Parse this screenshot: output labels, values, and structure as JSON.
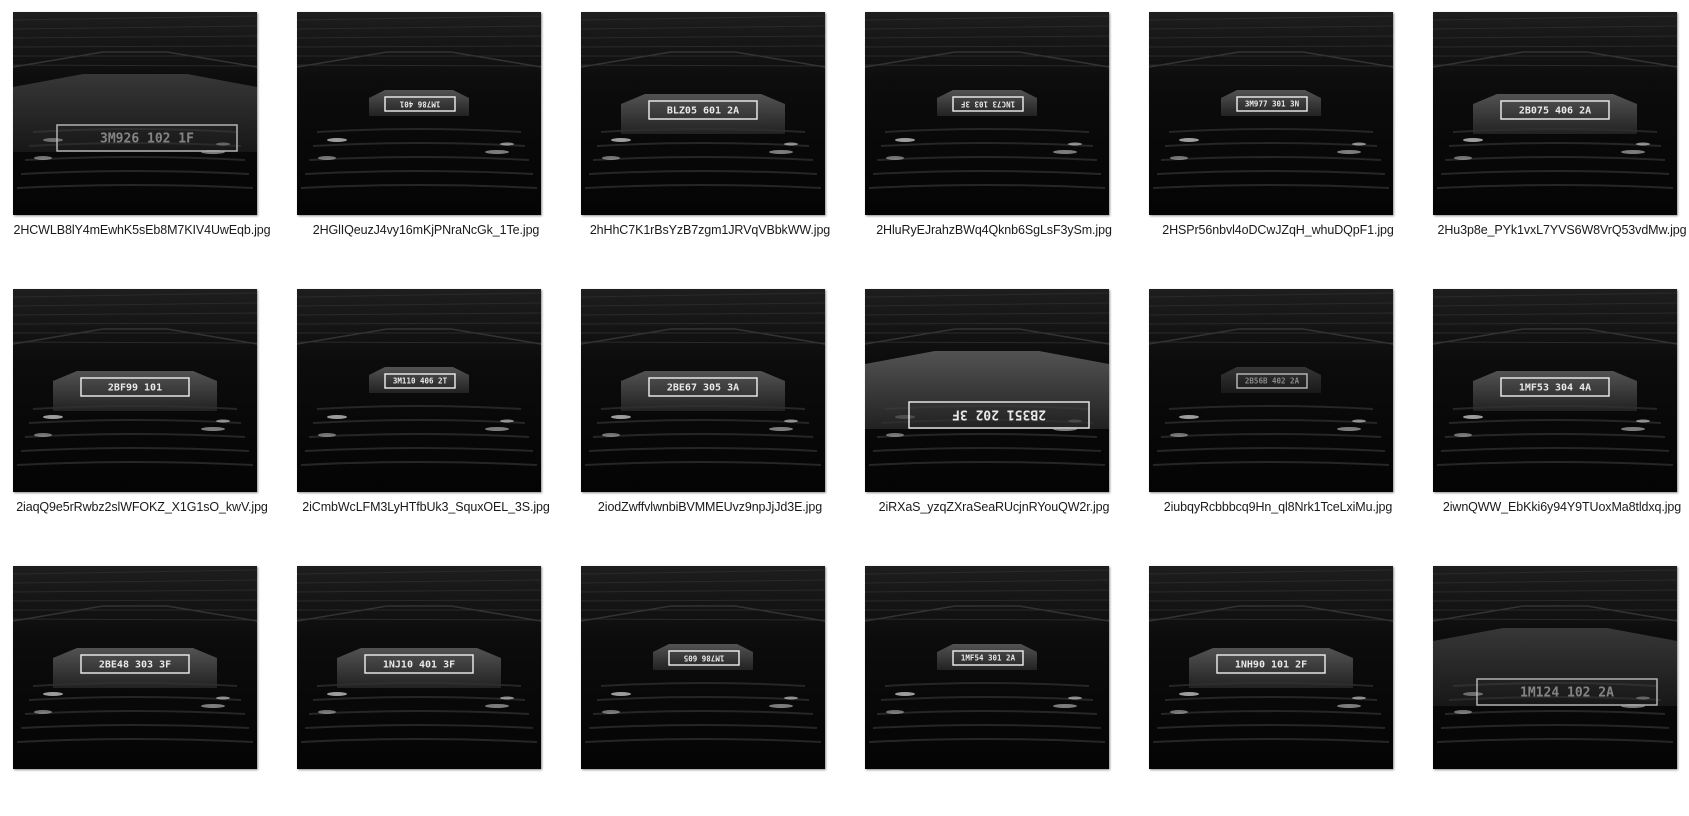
{
  "files": [
    {
      "name": "2HCWLB8lY4mEwhK5sEb8M7KIV4UwEqb.jpg",
      "plate": "3M926 102 1F",
      "flip": false,
      "faint": true,
      "zoom": "near"
    },
    {
      "name": "2HGlIQeuzJ4vy16mKjPNraNcGk_1Te.jpg",
      "plate": "1M786 401",
      "flip": true,
      "faint": false,
      "zoom": "far"
    },
    {
      "name": "2hHhC7K1rBsYzB7zgm1JRVqVBbkWW.jpg",
      "plate": "BLZ05 601 2A",
      "flip": false,
      "faint": false,
      "zoom": "mid"
    },
    {
      "name": "2HluRyEJrahzBWq4Qknb6SgLsF3ySm.jpg",
      "plate": "1NC73 103 3F",
      "flip": true,
      "faint": false,
      "zoom": "far"
    },
    {
      "name": "2HSPr56nbvl4oDCwJZqH_whuDQpF1.jpg",
      "plate": "3M977 301 3N",
      "flip": false,
      "faint": false,
      "zoom": "far"
    },
    {
      "name": "2Hu3p8e_PYk1vxL7YVS6W8VrQ53vdMw.jpg",
      "plate": "2B075 406 2A",
      "flip": false,
      "faint": false,
      "zoom": "mid"
    },
    {
      "name": "2iaqQ9e5rRwbz2slWFOKZ_X1G1sO_kwV.jpg",
      "plate": "2BF99 101",
      "flip": false,
      "faint": false,
      "zoom": "mid"
    },
    {
      "name": "2iCmbWcLFM3LyHTfbUk3_SquxOEL_3S.jpg",
      "plate": "3M110 406 2T",
      "flip": false,
      "faint": false,
      "zoom": "far"
    },
    {
      "name": "2iodZwffvlwnbiBVMMEUvz9npJjJd3E.jpg",
      "plate": "2BE67 305 3A",
      "flip": false,
      "faint": false,
      "zoom": "mid"
    },
    {
      "name": "2iRXaS_yzqZXraSeaRUcjnRYouQW2r.jpg",
      "plate": "2B351 202 3F",
      "flip": true,
      "faint": false,
      "zoom": "near"
    },
    {
      "name": "2iubqyRcbbbcq9Hn_ql8Nrk1TceLxiMu.jpg",
      "plate": "2B56B 402 2A",
      "flip": false,
      "faint": true,
      "zoom": "far"
    },
    {
      "name": "2iwnQWW_EbKki6y94Y9TUoxMa8tldxq.jpg",
      "plate": "1MF53 304 4A",
      "flip": false,
      "faint": false,
      "zoom": "mid"
    },
    {
      "name": "",
      "plate": "2BE48 303 3F",
      "flip": false,
      "faint": false,
      "zoom": "mid"
    },
    {
      "name": "",
      "plate": "1NJ10 401 3F",
      "flip": false,
      "faint": false,
      "zoom": "mid"
    },
    {
      "name": "",
      "plate": "1M786 605",
      "flip": true,
      "faint": false,
      "zoom": "far"
    },
    {
      "name": "",
      "plate": "1MF54 301 2A",
      "flip": false,
      "faint": false,
      "zoom": "far"
    },
    {
      "name": "",
      "plate": "1NH90 101 2F",
      "flip": false,
      "faint": false,
      "zoom": "mid"
    },
    {
      "name": "",
      "plate": "1M124 102 2A",
      "flip": false,
      "faint": true,
      "zoom": "near"
    }
  ]
}
